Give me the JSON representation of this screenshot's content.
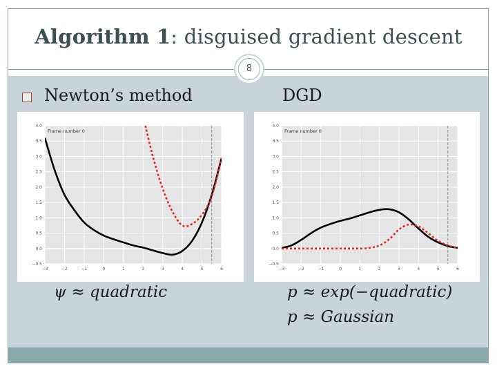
{
  "title": {
    "bold": "Algorithm 1",
    "rest": ": disguised gradient descent"
  },
  "slide_number": "8",
  "left": {
    "heading": "Newton’s method",
    "formula": "ψ ≈ quadratic"
  },
  "right": {
    "heading": "DGD",
    "formula_1": "p ≈ exp(−quadratic)",
    "formula_2": "p ≈ Gaussian"
  },
  "colors": {
    "black_curve": "#000000",
    "red_dashed": "#e0281e",
    "plot_bg": "#e5e5e5",
    "content_bg": "#c8d3da",
    "footer_bar": "#8aa7a9"
  },
  "chart_data": [
    {
      "type": "line",
      "annotation": "Frame number 0",
      "xlim": [
        -3,
        6
      ],
      "ylim": [
        -0.5,
        4.0
      ],
      "xticks": [
        "−3",
        "−2",
        "−1",
        "0",
        "1",
        "2",
        "3",
        "4",
        "5",
        "6"
      ],
      "yticks": [
        "−0.5",
        "0.0",
        "0.5",
        "1.0",
        "1.5",
        "2.0",
        "2.5",
        "3.0",
        "3.5",
        "4.0"
      ],
      "grid": true,
      "vline_x": 5.5,
      "series": [
        {
          "style": "solid",
          "color": "#000000",
          "x": [
            -3,
            -2.5,
            -2,
            -1.5,
            -1,
            -0.5,
            0,
            0.5,
            1,
            1.5,
            2,
            2.5,
            3,
            3.5,
            4,
            4.5,
            5,
            5.5,
            6
          ],
          "y": [
            3.6,
            2.55,
            1.75,
            1.25,
            0.85,
            0.6,
            0.42,
            0.3,
            0.2,
            0.1,
            0.03,
            -0.06,
            -0.15,
            -0.2,
            -0.08,
            0.25,
            0.85,
            1.75,
            2.95
          ]
        },
        {
          "style": "dashed",
          "color": "#e0281e",
          "x": [
            2.12,
            2.5,
            3,
            3.5,
            4,
            4.5,
            5,
            5.5,
            6
          ],
          "y": [
            4.0,
            3.0,
            1.95,
            1.2,
            0.75,
            0.8,
            1.1,
            1.7,
            2.95
          ]
        }
      ]
    },
    {
      "type": "line",
      "annotation": "Frame number 0",
      "xlim": [
        -3,
        6
      ],
      "ylim": [
        -0.5,
        4.0
      ],
      "xticks": [
        "−3",
        "−2",
        "−1",
        "0",
        "1",
        "2",
        "3",
        "4",
        "5",
        "6"
      ],
      "yticks": [
        "−0.5",
        "0.0",
        "0.5",
        "1.0",
        "1.5",
        "2.0",
        "2.5",
        "3.0",
        "3.5",
        "4.0"
      ],
      "grid": true,
      "vline_x": 5.5,
      "series": [
        {
          "style": "solid",
          "color": "#000000",
          "x": [
            -3,
            -2.5,
            -2,
            -1.5,
            -1,
            -0.5,
            0,
            0.5,
            1,
            1.5,
            2,
            2.5,
            3,
            3.5,
            4,
            4.5,
            5,
            5.5,
            6
          ],
          "y": [
            0.02,
            0.1,
            0.28,
            0.5,
            0.68,
            0.8,
            0.9,
            0.98,
            1.08,
            1.18,
            1.26,
            1.28,
            1.18,
            0.95,
            0.65,
            0.38,
            0.2,
            0.08,
            0.02
          ]
        },
        {
          "style": "dashed",
          "color": "#e0281e",
          "x": [
            -3,
            -2,
            -1,
            0,
            1,
            1.5,
            2,
            2.5,
            3,
            3.5,
            4,
            4.5,
            5,
            5.5,
            6
          ],
          "y": [
            0.0,
            0.0,
            0.0,
            0.0,
            0.0,
            0.02,
            0.1,
            0.3,
            0.62,
            0.78,
            0.72,
            0.5,
            0.25,
            0.1,
            0.02
          ]
        }
      ]
    }
  ]
}
